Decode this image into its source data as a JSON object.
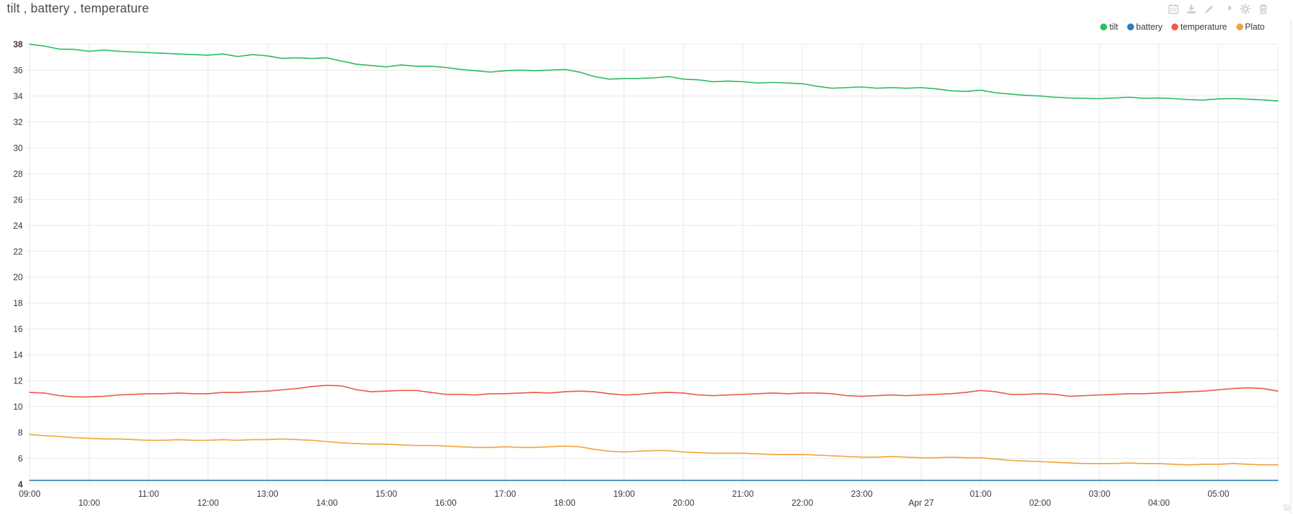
{
  "header": {
    "title": "tilt , battery , temperature"
  },
  "toolbar": {
    "icons": [
      {
        "name": "calendar"
      },
      {
        "name": "download"
      },
      {
        "name": "edit"
      },
      {
        "name": "share"
      },
      {
        "name": "settings"
      },
      {
        "name": "trash"
      }
    ]
  },
  "colors": {
    "tilt": "#2ebe64",
    "battery": "#2d7db3",
    "temperature": "#ea5e45",
    "plato": "#f2a43e",
    "grid": "#e8e8e8",
    "axis_text": "#3b3b3b",
    "title_text": "#4a4a4a",
    "icon_gray": "#cdcdcd"
  },
  "chart_data": {
    "type": "line",
    "title": "tilt , battery , temperature",
    "xlabel": "",
    "ylabel": "",
    "grid": true,
    "legend_position": "top-right",
    "x_axis": {
      "unit": "time",
      "min_hour": 9,
      "max_hour": 30,
      "tick_interval_hours": 1,
      "ticks": [
        {
          "t": 9,
          "label": "09:00",
          "row": "upper"
        },
        {
          "t": 10,
          "label": "10:00",
          "row": "lower"
        },
        {
          "t": 11,
          "label": "11:00",
          "row": "upper"
        },
        {
          "t": 12,
          "label": "12:00",
          "row": "lower"
        },
        {
          "t": 13,
          "label": "13:00",
          "row": "upper"
        },
        {
          "t": 14,
          "label": "14:00",
          "row": "lower"
        },
        {
          "t": 15,
          "label": "15:00",
          "row": "upper"
        },
        {
          "t": 16,
          "label": "16:00",
          "row": "lower"
        },
        {
          "t": 17,
          "label": "17:00",
          "row": "upper"
        },
        {
          "t": 18,
          "label": "18:00",
          "row": "lower"
        },
        {
          "t": 19,
          "label": "19:00",
          "row": "upper"
        },
        {
          "t": 20,
          "label": "20:00",
          "row": "lower"
        },
        {
          "t": 21,
          "label": "21:00",
          "row": "upper"
        },
        {
          "t": 22,
          "label": "22:00",
          "row": "lower"
        },
        {
          "t": 23,
          "label": "23:00",
          "row": "upper"
        },
        {
          "t": 24,
          "label": "Apr 27",
          "row": "lower"
        },
        {
          "t": 25,
          "label": "01:00",
          "row": "upper"
        },
        {
          "t": 26,
          "label": "02:00",
          "row": "lower"
        },
        {
          "t": 27,
          "label": "03:00",
          "row": "upper"
        },
        {
          "t": 28,
          "label": "04:00",
          "row": "lower"
        },
        {
          "t": 29,
          "label": "05:00",
          "row": "upper"
        }
      ]
    },
    "y_axis": {
      "min": 4,
      "max": 38,
      "tick_step": 2,
      "ticks": [
        38,
        36,
        34,
        32,
        30,
        28,
        26,
        24,
        22,
        20,
        18,
        16,
        14,
        12,
        10,
        8,
        6,
        4
      ],
      "bold_ticks": [
        38,
        4
      ]
    },
    "series": [
      {
        "name": "tilt",
        "color": "#2ebe64",
        "points": [
          [
            9,
            38
          ],
          [
            9.25,
            37.85
          ],
          [
            9.5,
            37.62
          ],
          [
            9.75,
            37.6
          ],
          [
            10,
            37.45
          ],
          [
            10.25,
            37.55
          ],
          [
            10.5,
            37.45
          ],
          [
            10.75,
            37.4
          ],
          [
            11,
            37.35
          ],
          [
            11.25,
            37.3
          ],
          [
            11.5,
            37.25
          ],
          [
            11.75,
            37.2
          ],
          [
            12,
            37.15
          ],
          [
            12.25,
            37.25
          ],
          [
            12.5,
            37.05
          ],
          [
            12.75,
            37.2
          ],
          [
            13,
            37.1
          ],
          [
            13.25,
            36.9
          ],
          [
            13.5,
            36.95
          ],
          [
            13.75,
            36.9
          ],
          [
            14,
            36.95
          ],
          [
            14.25,
            36.7
          ],
          [
            14.5,
            36.45
          ],
          [
            14.75,
            36.35
          ],
          [
            15,
            36.25
          ],
          [
            15.25,
            36.4
          ],
          [
            15.5,
            36.3
          ],
          [
            15.75,
            36.3
          ],
          [
            16,
            36.2
          ],
          [
            16.25,
            36.05
          ],
          [
            16.5,
            35.95
          ],
          [
            16.75,
            35.85
          ],
          [
            17,
            35.95
          ],
          [
            17.25,
            36
          ],
          [
            17.5,
            35.95
          ],
          [
            17.75,
            36
          ],
          [
            18,
            36.05
          ],
          [
            18.25,
            35.85
          ],
          [
            18.5,
            35.5
          ],
          [
            18.75,
            35.3
          ],
          [
            19,
            35.35
          ],
          [
            19.25,
            35.35
          ],
          [
            19.5,
            35.4
          ],
          [
            19.75,
            35.5
          ],
          [
            20,
            35.3
          ],
          [
            20.25,
            35.25
          ],
          [
            20.5,
            35.1
          ],
          [
            20.75,
            35.15
          ],
          [
            21,
            35.1
          ],
          [
            21.25,
            35
          ],
          [
            21.5,
            35.05
          ],
          [
            21.75,
            35
          ],
          [
            22,
            34.95
          ],
          [
            22.25,
            34.75
          ],
          [
            22.5,
            34.6
          ],
          [
            22.75,
            34.65
          ],
          [
            23,
            34.7
          ],
          [
            23.25,
            34.6
          ],
          [
            23.5,
            34.65
          ],
          [
            23.75,
            34.6
          ],
          [
            24,
            34.65
          ],
          [
            24.25,
            34.55
          ],
          [
            24.5,
            34.4
          ],
          [
            24.75,
            34.35
          ],
          [
            25,
            34.45
          ],
          [
            25.25,
            34.25
          ],
          [
            25.5,
            34.15
          ],
          [
            25.75,
            34.05
          ],
          [
            26,
            34
          ],
          [
            26.25,
            33.9
          ],
          [
            26.5,
            33.85
          ],
          [
            26.75,
            33.82
          ],
          [
            27,
            33.8
          ],
          [
            27.25,
            33.85
          ],
          [
            27.5,
            33.9
          ],
          [
            27.75,
            33.82
          ],
          [
            28,
            33.85
          ],
          [
            28.25,
            33.8
          ],
          [
            28.5,
            33.72
          ],
          [
            28.75,
            33.68
          ],
          [
            29,
            33.78
          ],
          [
            29.25,
            33.8
          ],
          [
            29.5,
            33.75
          ],
          [
            29.75,
            33.7
          ],
          [
            30,
            33.62
          ]
        ]
      },
      {
        "name": "battery",
        "color": "#2d7db3",
        "points": [
          [
            9,
            4.3
          ],
          [
            30,
            4.3
          ]
        ]
      },
      {
        "name": "temperature",
        "color": "#ea5e45",
        "points": [
          [
            9,
            11.1
          ],
          [
            9.25,
            11.05
          ],
          [
            9.5,
            10.85
          ],
          [
            9.75,
            10.75
          ],
          [
            10,
            10.75
          ],
          [
            10.25,
            10.8
          ],
          [
            10.5,
            10.9
          ],
          [
            10.75,
            10.95
          ],
          [
            11,
            11
          ],
          [
            11.25,
            11
          ],
          [
            11.5,
            11.05
          ],
          [
            11.75,
            11
          ],
          [
            12,
            11
          ],
          [
            12.25,
            11.1
          ],
          [
            12.5,
            11.1
          ],
          [
            12.75,
            11.15
          ],
          [
            13,
            11.2
          ],
          [
            13.25,
            11.3
          ],
          [
            13.5,
            11.4
          ],
          [
            13.75,
            11.55
          ],
          [
            14,
            11.65
          ],
          [
            14.25,
            11.6
          ],
          [
            14.5,
            11.3
          ],
          [
            14.75,
            11.15
          ],
          [
            15,
            11.2
          ],
          [
            15.25,
            11.25
          ],
          [
            15.5,
            11.25
          ],
          [
            15.75,
            11.1
          ],
          [
            16,
            10.95
          ],
          [
            16.25,
            10.95
          ],
          [
            16.5,
            10.9
          ],
          [
            16.75,
            11
          ],
          [
            17,
            11
          ],
          [
            17.25,
            11.05
          ],
          [
            17.5,
            11.1
          ],
          [
            17.75,
            11.05
          ],
          [
            18,
            11.15
          ],
          [
            18.25,
            11.2
          ],
          [
            18.5,
            11.15
          ],
          [
            18.75,
            11
          ],
          [
            19,
            10.9
          ],
          [
            19.25,
            10.95
          ],
          [
            19.5,
            11.05
          ],
          [
            19.75,
            11.1
          ],
          [
            20,
            11.05
          ],
          [
            20.25,
            10.9
          ],
          [
            20.5,
            10.85
          ],
          [
            20.75,
            10.9
          ],
          [
            21,
            10.95
          ],
          [
            21.25,
            11
          ],
          [
            21.5,
            11.05
          ],
          [
            21.75,
            11
          ],
          [
            22,
            11.05
          ],
          [
            22.25,
            11.05
          ],
          [
            22.5,
            11
          ],
          [
            22.75,
            10.85
          ],
          [
            23,
            10.8
          ],
          [
            23.25,
            10.85
          ],
          [
            23.5,
            10.9
          ],
          [
            23.75,
            10.85
          ],
          [
            24,
            10.9
          ],
          [
            24.25,
            10.95
          ],
          [
            24.5,
            11
          ],
          [
            24.75,
            11.1
          ],
          [
            25,
            11.25
          ],
          [
            25.25,
            11.15
          ],
          [
            25.5,
            10.95
          ],
          [
            25.75,
            10.95
          ],
          [
            26,
            11
          ],
          [
            26.25,
            10.95
          ],
          [
            26.5,
            10.8
          ],
          [
            26.75,
            10.85
          ],
          [
            27,
            10.9
          ],
          [
            27.25,
            10.95
          ],
          [
            27.5,
            11
          ],
          [
            27.75,
            11
          ],
          [
            28,
            11.05
          ],
          [
            28.25,
            11.1
          ],
          [
            28.5,
            11.15
          ],
          [
            28.75,
            11.2
          ],
          [
            29,
            11.3
          ],
          [
            29.25,
            11.4
          ],
          [
            29.5,
            11.45
          ],
          [
            29.75,
            11.4
          ],
          [
            30,
            11.2
          ]
        ]
      },
      {
        "name": "Plato",
        "color": "#f2a43e",
        "points": [
          [
            9,
            7.85
          ],
          [
            9.25,
            7.75
          ],
          [
            9.5,
            7.7
          ],
          [
            9.75,
            7.6
          ],
          [
            10,
            7.55
          ],
          [
            10.25,
            7.5
          ],
          [
            10.5,
            7.5
          ],
          [
            10.75,
            7.45
          ],
          [
            11,
            7.4
          ],
          [
            11.25,
            7.4
          ],
          [
            11.5,
            7.45
          ],
          [
            11.75,
            7.4
          ],
          [
            12,
            7.4
          ],
          [
            12.25,
            7.45
          ],
          [
            12.5,
            7.4
          ],
          [
            12.75,
            7.45
          ],
          [
            13,
            7.45
          ],
          [
            13.25,
            7.5
          ],
          [
            13.5,
            7.45
          ],
          [
            13.75,
            7.4
          ],
          [
            14,
            7.3
          ],
          [
            14.25,
            7.2
          ],
          [
            14.5,
            7.15
          ],
          [
            14.75,
            7.1
          ],
          [
            15,
            7.1
          ],
          [
            15.25,
            7.05
          ],
          [
            15.5,
            7
          ],
          [
            15.75,
            7
          ],
          [
            16,
            6.95
          ],
          [
            16.25,
            6.9
          ],
          [
            16.5,
            6.85
          ],
          [
            16.75,
            6.85
          ],
          [
            17,
            6.9
          ],
          [
            17.25,
            6.85
          ],
          [
            17.5,
            6.85
          ],
          [
            17.75,
            6.9
          ],
          [
            18,
            6.95
          ],
          [
            18.25,
            6.9
          ],
          [
            18.5,
            6.7
          ],
          [
            18.75,
            6.55
          ],
          [
            19,
            6.5
          ],
          [
            19.25,
            6.55
          ],
          [
            19.5,
            6.6
          ],
          [
            19.75,
            6.6
          ],
          [
            20,
            6.5
          ],
          [
            20.25,
            6.45
          ],
          [
            20.5,
            6.4
          ],
          [
            20.75,
            6.4
          ],
          [
            21,
            6.4
          ],
          [
            21.25,
            6.35
          ],
          [
            21.5,
            6.3
          ],
          [
            21.75,
            6.3
          ],
          [
            22,
            6.3
          ],
          [
            22.25,
            6.25
          ],
          [
            22.5,
            6.2
          ],
          [
            22.75,
            6.15
          ],
          [
            23,
            6.1
          ],
          [
            23.25,
            6.1
          ],
          [
            23.5,
            6.15
          ],
          [
            23.75,
            6.1
          ],
          [
            24,
            6.05
          ],
          [
            24.25,
            6.05
          ],
          [
            24.5,
            6.1
          ],
          [
            24.75,
            6.05
          ],
          [
            25,
            6.05
          ],
          [
            25.25,
            5.95
          ],
          [
            25.5,
            5.85
          ],
          [
            25.75,
            5.8
          ],
          [
            26,
            5.75
          ],
          [
            26.25,
            5.7
          ],
          [
            26.5,
            5.65
          ],
          [
            26.75,
            5.6
          ],
          [
            27,
            5.6
          ],
          [
            27.25,
            5.6
          ],
          [
            27.5,
            5.65
          ],
          [
            27.75,
            5.6
          ],
          [
            28,
            5.6
          ],
          [
            28.25,
            5.55
          ],
          [
            28.5,
            5.5
          ],
          [
            28.75,
            5.55
          ],
          [
            29,
            5.55
          ],
          [
            29.25,
            5.6
          ],
          [
            29.5,
            5.55
          ],
          [
            29.75,
            5.5
          ],
          [
            30,
            5.5
          ]
        ]
      }
    ]
  }
}
